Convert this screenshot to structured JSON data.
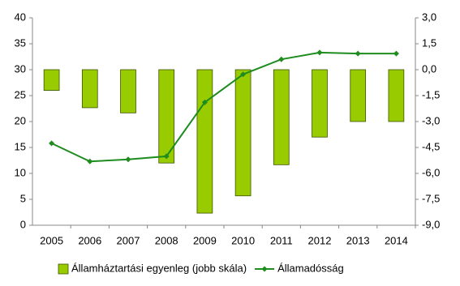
{
  "chart_data": {
    "type": "bar",
    "categories": [
      "2005",
      "2006",
      "2007",
      "2008",
      "2009",
      "2010",
      "2011",
      "2012",
      "2013",
      "2014"
    ],
    "series": [
      {
        "name": "Államháztartási egyenleg (jobb skála)",
        "type": "bar",
        "axis": "y2",
        "color": "#99cc00",
        "values": [
          -1.2,
          -2.2,
          -2.5,
          -5.4,
          -8.3,
          -7.3,
          -5.5,
          -3.9,
          -3.0,
          -3.0
        ]
      },
      {
        "name": "Államadósság",
        "type": "line",
        "color": "#1e8c1e",
        "values": [
          15.8,
          12.3,
          12.7,
          13.3,
          23.7,
          29.1,
          32.0,
          33.3,
          33.1,
          33.1
        ]
      }
    ],
    "ylim": [
      0,
      40
    ],
    "yticks": [
      0,
      5,
      10,
      15,
      20,
      25,
      30,
      35,
      40
    ],
    "y2lim": [
      -9,
      3
    ],
    "y2ticks": [
      {
        "value": -9,
        "label": "-9,0"
      },
      {
        "value": -7.5,
        "label": "-7,5"
      },
      {
        "value": -6,
        "label": "-6,0"
      },
      {
        "value": -4.5,
        "label": "-4,5"
      },
      {
        "value": -3,
        "label": "-3,0"
      },
      {
        "value": -1.5,
        "label": "-1,5"
      },
      {
        "value": 0,
        "label": "0,0"
      },
      {
        "value": 1.5,
        "label": "1,5"
      },
      {
        "value": 3,
        "label": "3,0"
      }
    ],
    "grid": false,
    "legend": "bottom"
  }
}
